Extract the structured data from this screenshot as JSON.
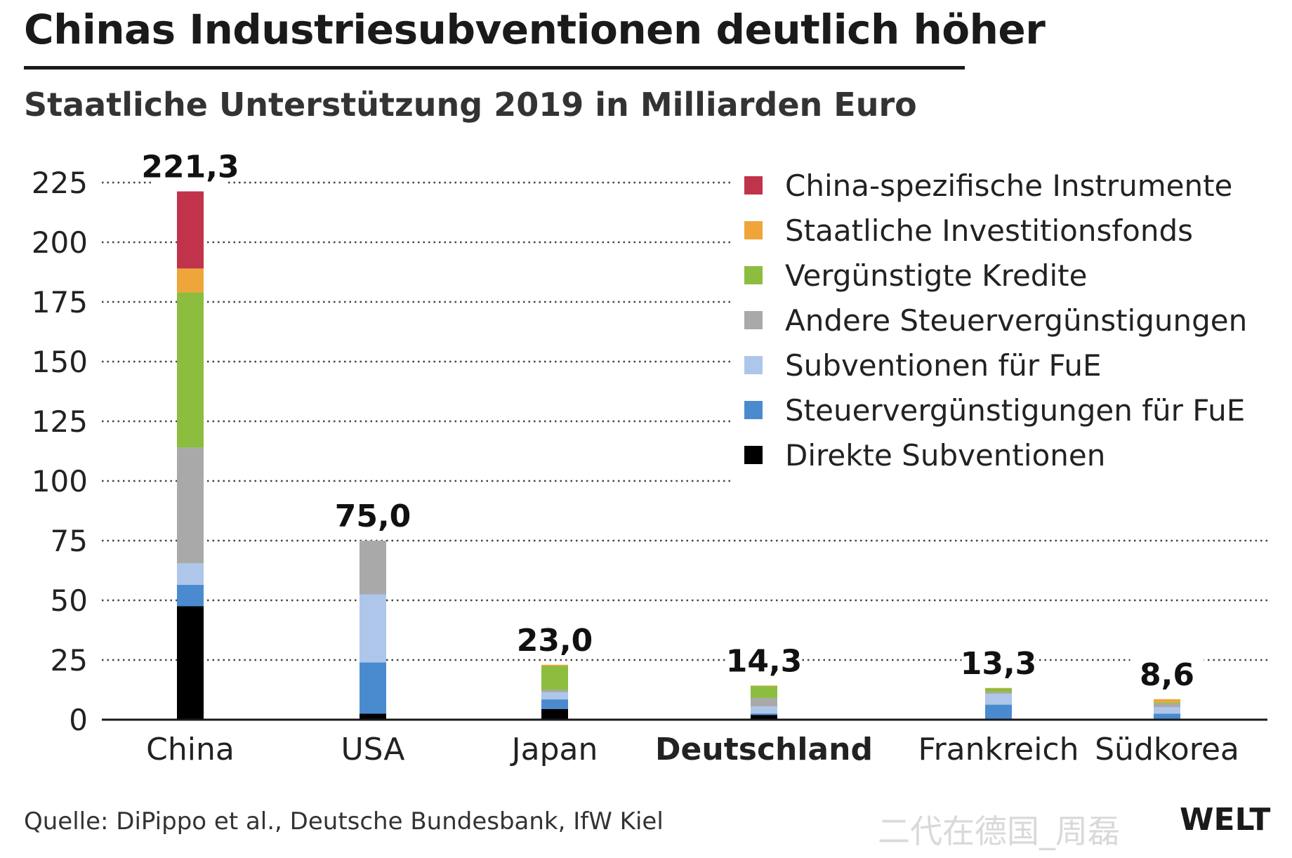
{
  "header": {
    "title": "Chinas Industriesubventionen deutlich höher",
    "subtitle": "Staatliche Unterstützung 2019 in Milliarden Euro"
  },
  "footer": {
    "source": "Quelle: DiPippo et al., Deutsche Bundesbank, IfW Kiel",
    "logo": "WELT",
    "watermark": "二代在德国_周磊"
  },
  "colors": {
    "china_specific": "#c0334a",
    "state_funds": "#eea63a",
    "preferential_loans": "#8cbd3f",
    "other_tax": "#a9a9a9",
    "rd_subsidies": "#aec6ea",
    "rd_tax": "#4a8bcf",
    "direct_subsidies": "#000000"
  },
  "chart_data": {
    "type": "bar",
    "stacked": true,
    "categories": [
      "China",
      "USA",
      "Japan",
      "Deutschland",
      "Frankreich",
      "Südkorea"
    ],
    "highlight_category": "Deutschland",
    "ylim": [
      0,
      225
    ],
    "yticks": [
      0,
      25,
      50,
      75,
      100,
      125,
      150,
      175,
      200,
      225
    ],
    "ytick_labels": [
      "0",
      "25",
      "50",
      "75",
      "100",
      "125",
      "150",
      "175",
      "200",
      "225"
    ],
    "totals": [
      221.3,
      75.0,
      23.0,
      14.3,
      13.3,
      8.6
    ],
    "total_labels": [
      "221,3",
      "75,0",
      "23,0",
      "14,3",
      "13,3",
      "8,6"
    ],
    "grid": "dotted",
    "legend_position": "top-right",
    "series": [
      {
        "name": "Direkte Subventionen",
        "color": "#000000",
        "values": [
          47.5,
          2.5,
          4.5,
          2.0,
          0.3,
          0.3
        ]
      },
      {
        "name": "Steuervergünstigungen für FuE",
        "color": "#4a8bcf",
        "values": [
          9.0,
          21.5,
          4.0,
          0.6,
          6.0,
          2.2
        ]
      },
      {
        "name": "Subventionen für FuE",
        "color": "#aec6ea",
        "values": [
          9.0,
          28.5,
          3.0,
          3.0,
          4.5,
          2.8
        ]
      },
      {
        "name": "Andere Steuervergünstigungen",
        "color": "#a9a9a9",
        "values": [
          48.5,
          22.5,
          1.0,
          3.5,
          0.8,
          1.5
        ]
      },
      {
        "name": "Vergünstigte Kredite",
        "color": "#8cbd3f",
        "values": [
          65.0,
          0.0,
          10.0,
          5.0,
          1.5,
          0.5
        ]
      },
      {
        "name": "Staatliche Investitionsfonds",
        "color": "#eea63a",
        "values": [
          10.0,
          0.0,
          0.5,
          0.2,
          0.2,
          1.3
        ]
      },
      {
        "name": "China-spezifische Instrumente",
        "color": "#c0334a",
        "values": [
          32.3,
          0.0,
          0.0,
          0.0,
          0.0,
          0.0
        ]
      }
    ]
  }
}
